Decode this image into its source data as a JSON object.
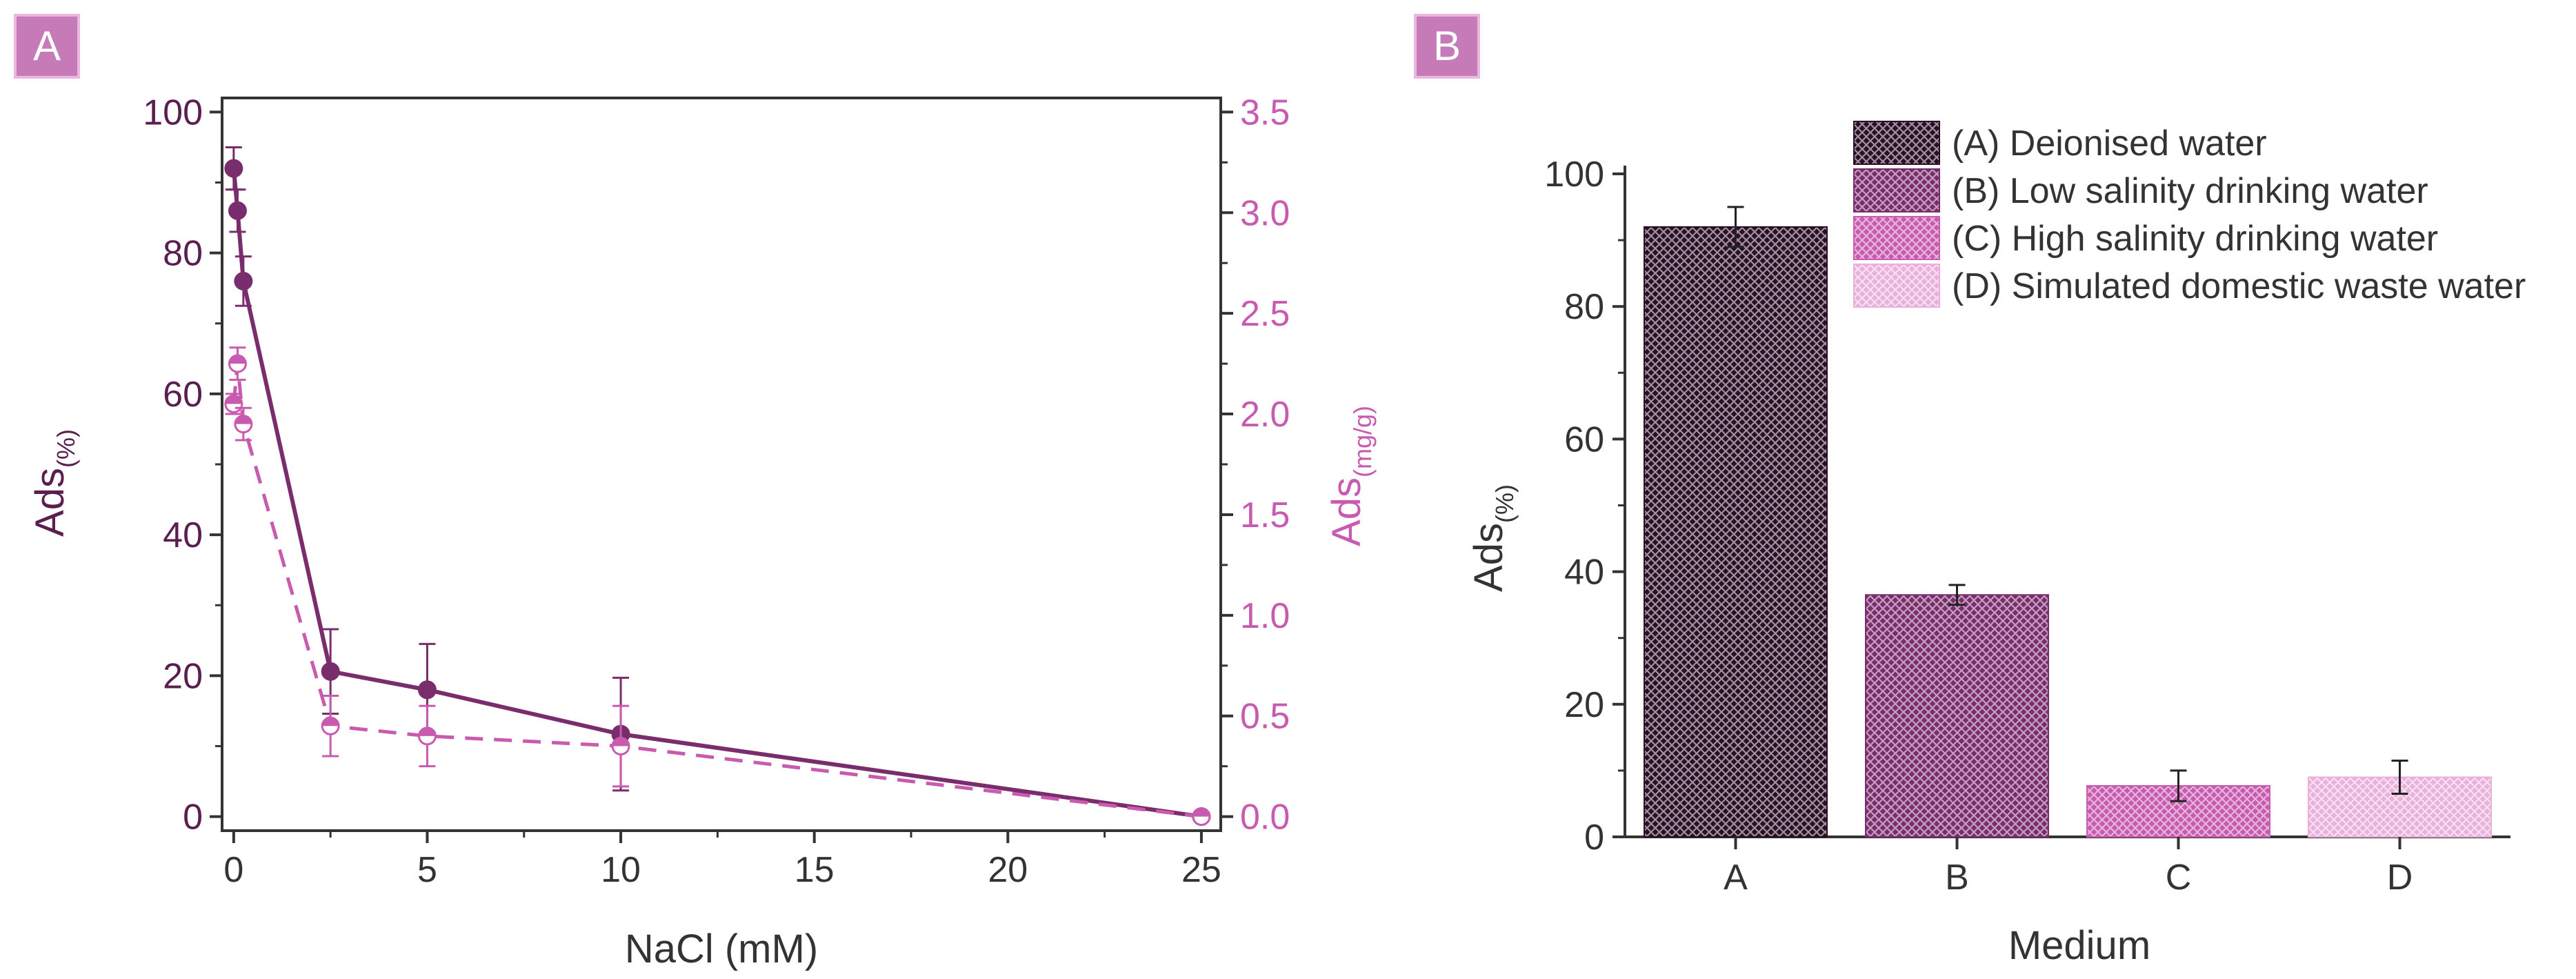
{
  "panels": {
    "a_label": "A",
    "b_label": "B"
  },
  "colors": {
    "dark": "#5a1f4f",
    "mid": "#7a2d6c",
    "pink": "#c85bb0",
    "lightpink": "#e8a5d8",
    "label_bg": "#c77ab8"
  },
  "chart_data": [
    {
      "type": "line",
      "panel": "A",
      "xlabel": "NaCl (mM)",
      "ylabel_left": "Ads",
      "ylabel_left_sub": "(%)",
      "ylabel_right": "Ads",
      "ylabel_right_sub": "(mg/g)",
      "xlim": [
        -0.3,
        25.5
      ],
      "ylim_left": [
        -2,
        102
      ],
      "ylim_right": [
        -0.07,
        3.57
      ],
      "x_ticks": [
        "0",
        "5",
        "10",
        "15",
        "20",
        "25"
      ],
      "y_left_ticks": [
        "0",
        "20",
        "40",
        "60",
        "80",
        "100"
      ],
      "y_right_ticks": [
        "0.0",
        "0.5",
        "1.0",
        "1.5",
        "2.0",
        "2.5",
        "3.0",
        "3.5"
      ],
      "series": [
        {
          "name": "Ads (%)",
          "axis": "left",
          "style": "solid-filled",
          "x": [
            0,
            0.1,
            0.25,
            2.5,
            5,
            10,
            25
          ],
          "y": [
            92,
            86,
            76,
            20.6,
            18,
            11.7,
            0
          ],
          "err": [
            3,
            3,
            3.5,
            6,
            6.5,
            8,
            0
          ]
        },
        {
          "name": "Ads (mg/g)",
          "axis": "right",
          "style": "dashed-half",
          "x": [
            0,
            0.1,
            0.25,
            2.5,
            5,
            10,
            25
          ],
          "y": [
            2.05,
            2.25,
            1.95,
            0.45,
            0.4,
            0.35,
            0
          ],
          "err": [
            0.05,
            0.08,
            0.08,
            0.15,
            0.15,
            0.2,
            0
          ]
        }
      ]
    },
    {
      "type": "bar",
      "panel": "B",
      "xlabel": "Medium",
      "ylabel": "Ads",
      "ylabel_sub": "(%)",
      "ylim": [
        0,
        100
      ],
      "y_ticks": [
        "0",
        "20",
        "40",
        "60",
        "80",
        "100"
      ],
      "categories": [
        "A",
        "B",
        "C",
        "D"
      ],
      "values": [
        92,
        36.5,
        7.7,
        9
      ],
      "errors": [
        3,
        1.5,
        2.3,
        2.5
      ],
      "legend": [
        "(A) Deionised water",
        "(B) Low salinity drinking water",
        "(C) High salinity drinking water",
        "(D) Simulated domestic waste water"
      ]
    }
  ]
}
